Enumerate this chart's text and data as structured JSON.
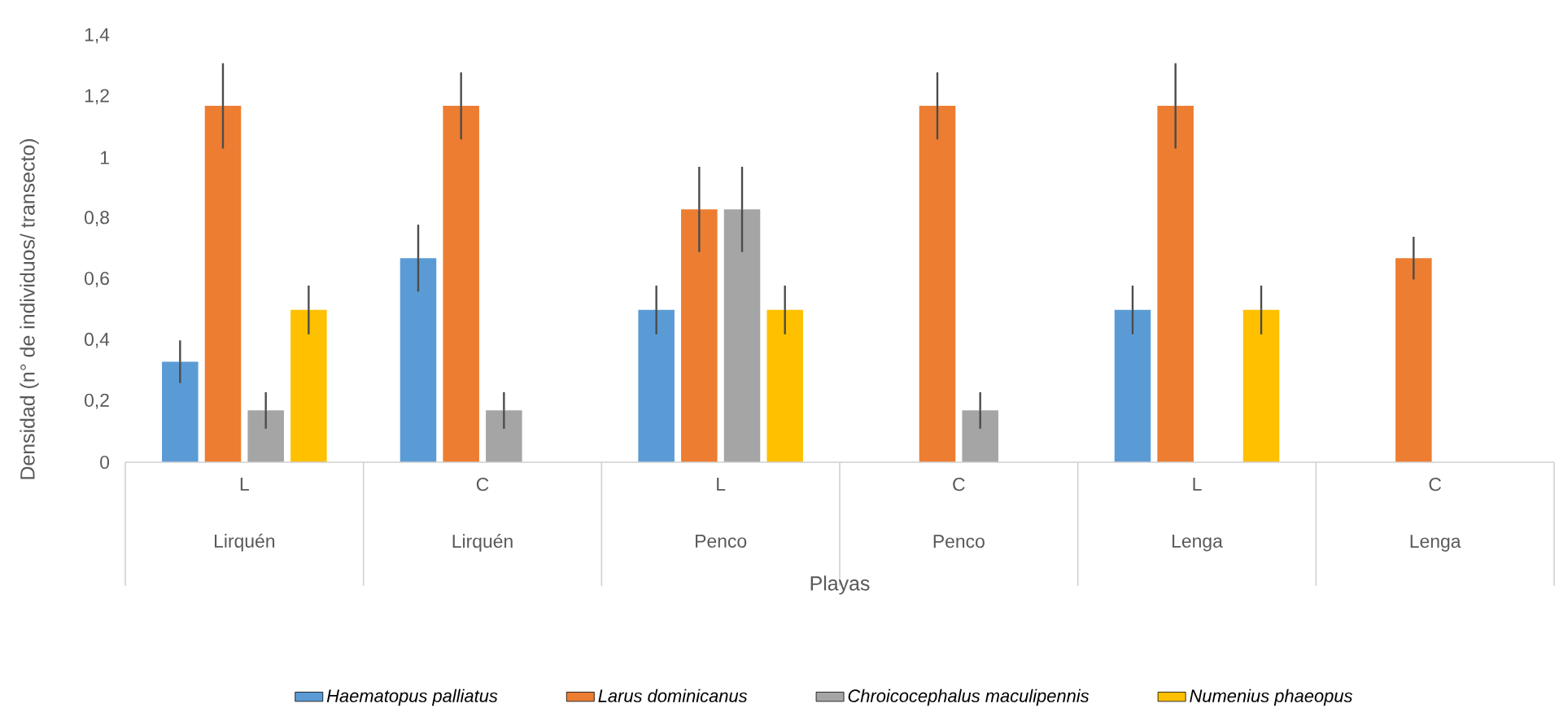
{
  "chart_data": {
    "type": "bar",
    "xlabel": "Playas",
    "ylabel": "Densidad (n° de individuos/ transecto)",
    "categories": [
      "L",
      "C",
      "L",
      "C",
      "L",
      "C"
    ],
    "annotations": [
      "Lirquén",
      "Lirquén",
      "Penco",
      "Penco",
      "Lenga",
      "Lenga"
    ],
    "ylim": [
      0,
      1.4
    ],
    "yticks": [
      0,
      {
        "value": 0.2,
        "label": "0,2"
      },
      {
        "value": 0.4,
        "label": "0,4"
      },
      {
        "value": 0.6,
        "label": "0,6"
      },
      {
        "value": 0.8,
        "label": "0,8"
      },
      1,
      {
        "value": 1.2,
        "label": "1,2"
      },
      {
        "value": 1.4,
        "label": "1,4"
      }
    ],
    "grid": false,
    "legend": "bottom",
    "series": [
      {
        "name": "Haematopus palliatus",
        "color": "#5b9bd5",
        "values": [
          0.33,
          0.67,
          0.5,
          null,
          0.5,
          null
        ],
        "errors": [
          0.07,
          0.11,
          0.08,
          null,
          0.08,
          null
        ]
      },
      {
        "name": "Larus dominicanus",
        "color": "#ed7d31",
        "values": [
          1.17,
          1.17,
          0.83,
          1.17,
          1.17,
          0.67
        ],
        "errors": [
          0.14,
          0.11,
          0.14,
          0.11,
          0.14,
          0.07
        ]
      },
      {
        "name": "Chroicocephalus maculipennis",
        "color": "#a5a5a5",
        "values": [
          0.17,
          0.17,
          0.83,
          0.17,
          null,
          null
        ],
        "errors": [
          0.06,
          0.06,
          0.14,
          0.06,
          null,
          null
        ]
      },
      {
        "name": "Numenius phaeopus",
        "color": "#ffc000",
        "values": [
          0.5,
          null,
          0.5,
          null,
          0.5,
          null
        ],
        "errors": [
          0.08,
          null,
          0.08,
          null,
          0.08,
          null
        ]
      }
    ]
  }
}
